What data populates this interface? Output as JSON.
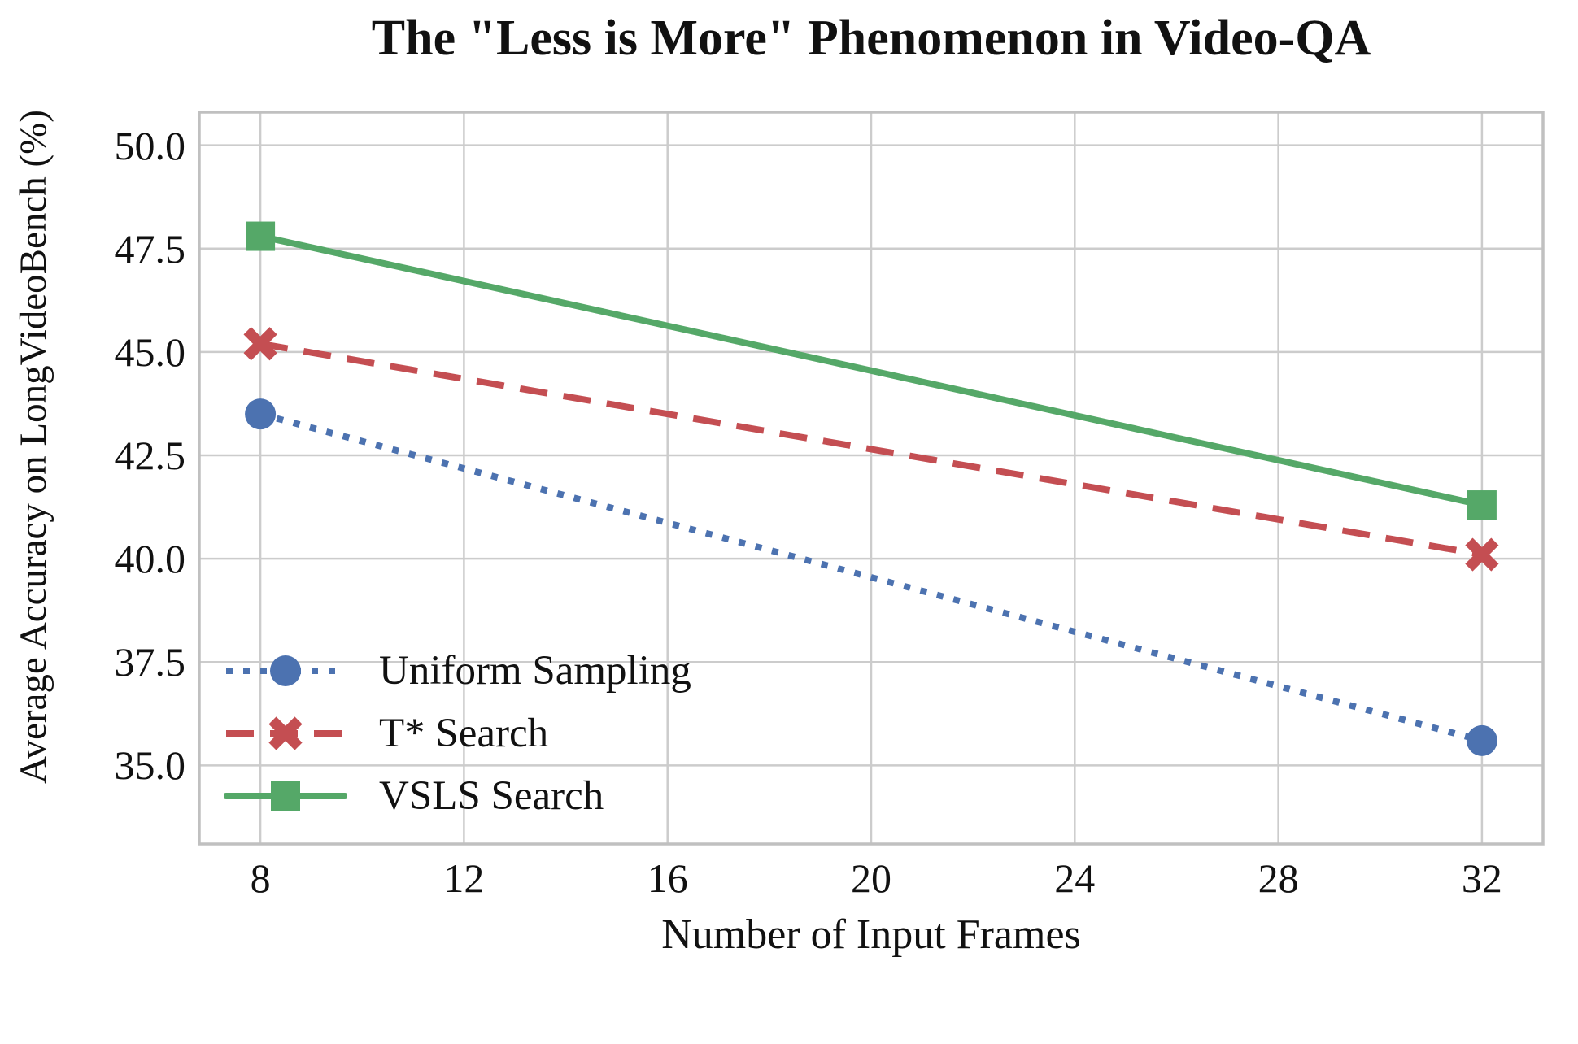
{
  "chart_data": {
    "type": "line",
    "title": "The \"Less is More\" Phenomenon in Video-QA",
    "xlabel": "Number of Input Frames",
    "ylabel": "Average Accuracy on LongVideoBench (%)",
    "x": [
      8,
      32
    ],
    "series": [
      {
        "name": "Uniform Sampling",
        "values": [
          43.5,
          35.6
        ],
        "color": "#4C72B0",
        "line_style": "dotted",
        "marker": "circle"
      },
      {
        "name": "T* Search",
        "values": [
          45.2,
          40.1
        ],
        "color": "#C44E52",
        "line_style": "dashed",
        "marker": "x"
      },
      {
        "name": "VSLS Search",
        "values": [
          47.8,
          41.3
        ],
        "color": "#55A868",
        "line_style": "solid",
        "marker": "square"
      }
    ],
    "xticks": [
      "8",
      "12",
      "16",
      "20",
      "24",
      "28",
      "32"
    ],
    "yticks": [
      "35.0",
      "37.5",
      "40.0",
      "42.5",
      "45.0",
      "47.5",
      "50.0"
    ],
    "xlim": [
      6.8,
      33.2
    ],
    "ylim": [
      33.1,
      50.8
    ],
    "grid": true,
    "legend_position": "lower left",
    "grid_color": "#cccccc",
    "spine_color": "#c0c0c0",
    "text_color": "#111111",
    "background": "#ffffff"
  }
}
